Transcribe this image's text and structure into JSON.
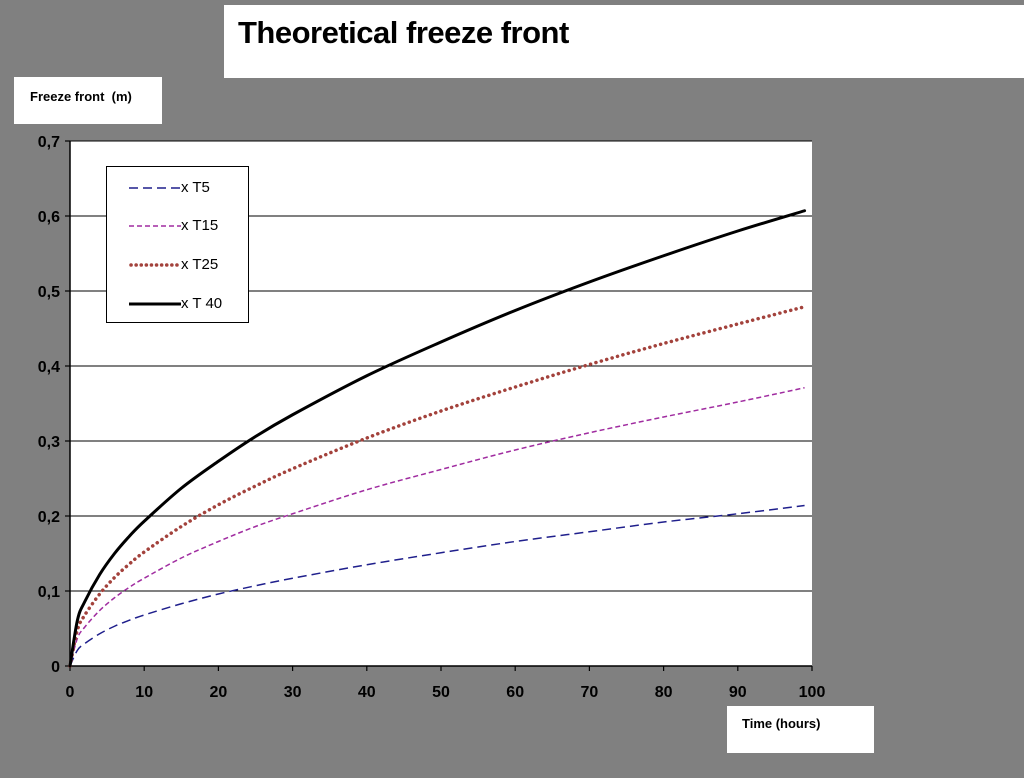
{
  "chart_data": {
    "type": "line",
    "title": "Theoretical freeze front",
    "ylabel": "Freeze front  (m)",
    "xlabel": "Time (hours)",
    "xlim": [
      0,
      100
    ],
    "ylim": [
      0,
      0.7
    ],
    "x_ticks": [
      0,
      10,
      20,
      30,
      40,
      50,
      60,
      70,
      80,
      90,
      100
    ],
    "x_tick_labels": [
      "0",
      "10",
      "20",
      "30",
      "40",
      "50",
      "60",
      "70",
      "80",
      "90",
      "100"
    ],
    "y_ticks": [
      0,
      0.1,
      0.2,
      0.3,
      0.4,
      0.5,
      0.6,
      0.7
    ],
    "y_tick_labels": [
      "0",
      "0,1",
      "0,2",
      "0,3",
      "0,4",
      "0,5",
      "0,6",
      "0,7"
    ],
    "grid": "horizontal",
    "legend_position": "top-left",
    "x": [
      0,
      1,
      2,
      4,
      6,
      8,
      10,
      15,
      20,
      25,
      30,
      40,
      50,
      60,
      70,
      80,
      90,
      99
    ],
    "series": [
      {
        "name": "x T5",
        "color": "#1f1f8c",
        "style": "long-dash",
        "values": [
          0,
          0.021,
          0.03,
          0.043,
          0.053,
          0.061,
          0.068,
          0.083,
          0.096,
          0.107,
          0.117,
          0.135,
          0.151,
          0.166,
          0.179,
          0.192,
          0.203,
          0.214
        ]
      },
      {
        "name": "x T15",
        "color": "#a02ca0",
        "style": "short-dash",
        "values": [
          0,
          0.037,
          0.052,
          0.074,
          0.091,
          0.105,
          0.117,
          0.144,
          0.166,
          0.186,
          0.203,
          0.235,
          0.262,
          0.288,
          0.311,
          0.332,
          0.352,
          0.371
        ]
      },
      {
        "name": "x T25",
        "color": "#a3423c",
        "style": "dotted",
        "values": [
          0,
          0.048,
          0.068,
          0.096,
          0.118,
          0.136,
          0.152,
          0.186,
          0.215,
          0.24,
          0.263,
          0.304,
          0.34,
          0.372,
          0.402,
          0.43,
          0.456,
          0.479
        ]
      },
      {
        "name": "x T 40",
        "color": "#000000",
        "style": "solid",
        "values": [
          0,
          0.061,
          0.086,
          0.122,
          0.15,
          0.173,
          0.193,
          0.237,
          0.273,
          0.306,
          0.335,
          0.387,
          0.432,
          0.474,
          0.512,
          0.547,
          0.58,
          0.607
        ]
      }
    ]
  }
}
